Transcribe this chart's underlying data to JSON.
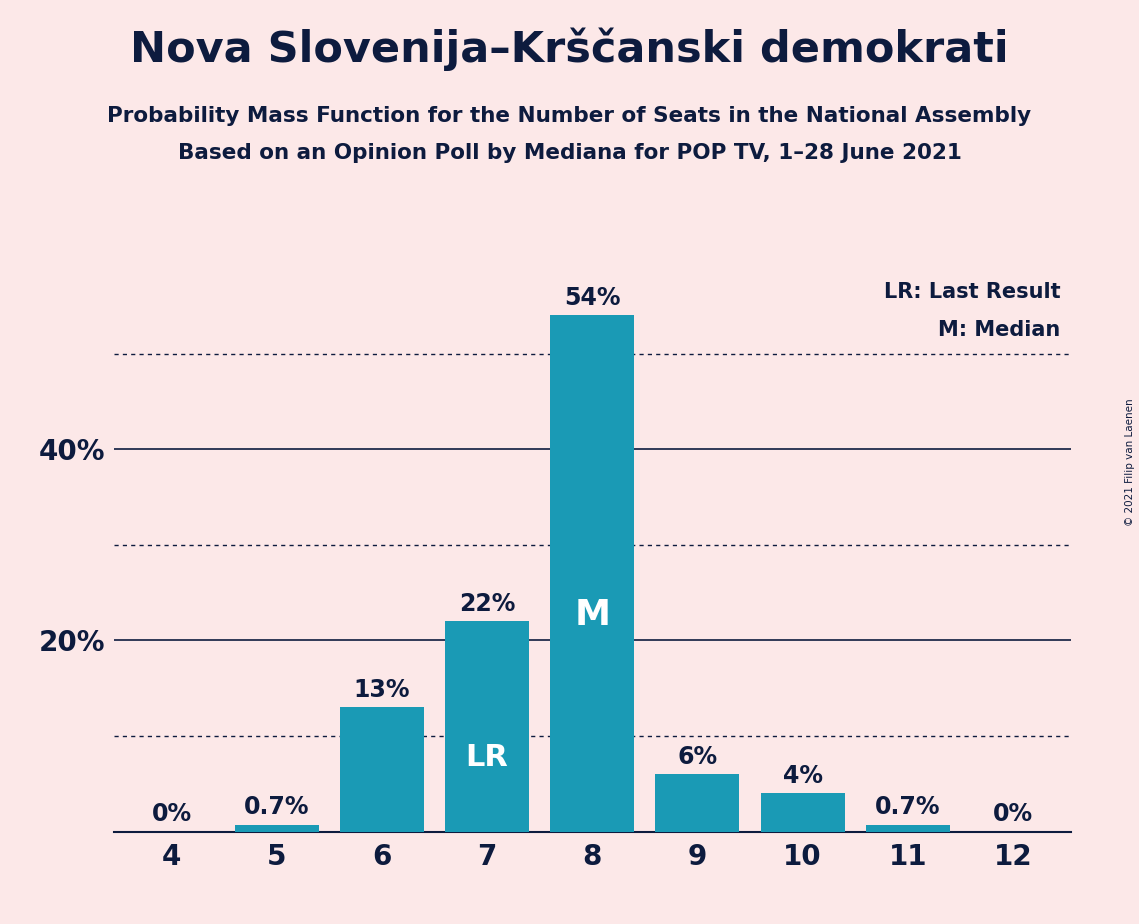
{
  "title": "Nova Slovenija–Krščanski demokrati",
  "subtitle1": "Probability Mass Function for the Number of Seats in the National Assembly",
  "subtitle2": "Based on an Opinion Poll by Mediana for POP TV, 1–28 June 2021",
  "copyright": "© 2021 Filip van Laenen",
  "seats": [
    4,
    5,
    6,
    7,
    8,
    9,
    10,
    11,
    12
  ],
  "probabilities": [
    0.0,
    0.7,
    13.0,
    22.0,
    54.0,
    6.0,
    4.0,
    0.7,
    0.0
  ],
  "bar_color": "#1a9ab5",
  "background_color": "#fce8e8",
  "text_color": "#0d1b3e",
  "label_color_inside": "#ffffff",
  "label_color_outside": "#0d1b3e",
  "lr_seat": 7,
  "median_seat": 8,
  "ylim": [
    0,
    58
  ],
  "solid_gridlines": [
    20,
    40
  ],
  "dotted_gridlines": [
    10,
    30,
    50
  ],
  "legend_lr": "LR: Last Result",
  "legend_m": "M: Median"
}
